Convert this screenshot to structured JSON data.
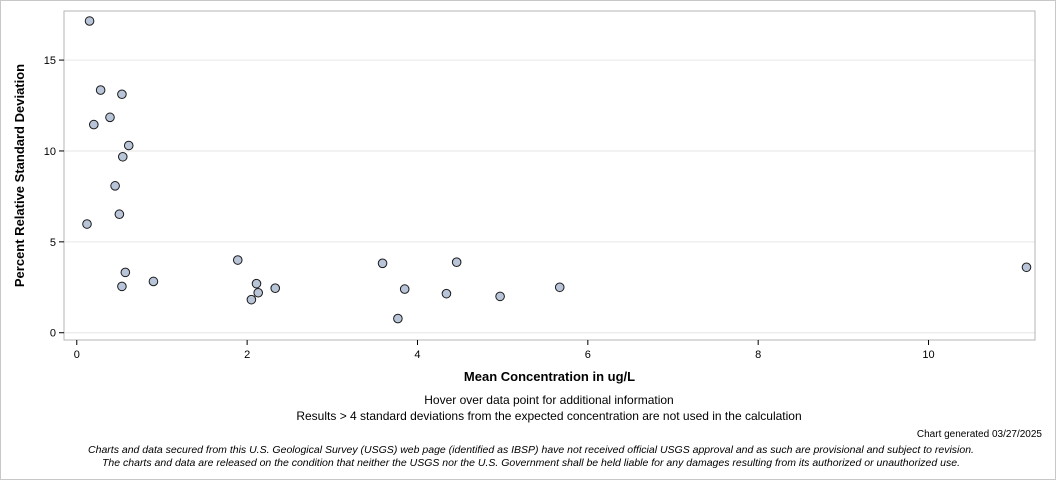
{
  "chart_data": {
    "type": "scatter",
    "xlabel": "Mean Concentration in ug/L",
    "ylabel": "Percent Relative Standard Deviation",
    "xlim": [
      -0.15,
      11.25
    ],
    "ylim": [
      -0.4,
      17.7
    ],
    "x_ticks": [
      {
        "value": 0,
        "label": "0"
      },
      {
        "value": 2,
        "label": "2"
      },
      {
        "value": 4,
        "label": "4"
      },
      {
        "value": 6,
        "label": "6"
      },
      {
        "value": 8,
        "label": "8"
      },
      {
        "value": 10,
        "label": "10"
      }
    ],
    "y_ticks": [
      {
        "value": 0,
        "label": "0"
      },
      {
        "value": 5,
        "label": "5"
      },
      {
        "value": 10,
        "label": "10"
      },
      {
        "value": 15,
        "label": "15"
      }
    ],
    "grid": "horizontal",
    "marker_fill": "#b8c4d8",
    "marker_stroke": "#1a1a1a",
    "points": [
      {
        "x": 0.15,
        "y": 17.15
      },
      {
        "x": 0.12,
        "y": 5.98
      },
      {
        "x": 0.2,
        "y": 11.45
      },
      {
        "x": 0.28,
        "y": 13.35
      },
      {
        "x": 0.39,
        "y": 11.85
      },
      {
        "x": 0.45,
        "y": 8.08
      },
      {
        "x": 0.5,
        "y": 6.52
      },
      {
        "x": 0.53,
        "y": 13.12
      },
      {
        "x": 0.54,
        "y": 9.68
      },
      {
        "x": 0.53,
        "y": 2.55
      },
      {
        "x": 0.57,
        "y": 3.32
      },
      {
        "x": 0.61,
        "y": 10.3
      },
      {
        "x": 0.9,
        "y": 2.82
      },
      {
        "x": 1.89,
        "y": 4.0
      },
      {
        "x": 2.05,
        "y": 1.82
      },
      {
        "x": 2.11,
        "y": 2.7
      },
      {
        "x": 2.13,
        "y": 2.2
      },
      {
        "x": 2.33,
        "y": 2.45
      },
      {
        "x": 3.59,
        "y": 3.82
      },
      {
        "x": 3.77,
        "y": 0.78
      },
      {
        "x": 3.85,
        "y": 2.4
      },
      {
        "x": 4.34,
        "y": 2.15
      },
      {
        "x": 4.46,
        "y": 3.88
      },
      {
        "x": 4.97,
        "y": 2.0
      },
      {
        "x": 5.67,
        "y": 2.5
      },
      {
        "x": 11.15,
        "y": 3.6
      }
    ]
  },
  "notes": {
    "hover": "Hover over data point for additional information",
    "results": "Results > 4 standard deviations from the expected concentration are not used in the calculation",
    "generated": "Chart generated 03/27/2025",
    "disclaimer_1": "Charts and data secured from this U.S. Geological Survey (USGS) web page (identified as IBSP) have not received official USGS approval and as such are provisional and subject to revision.",
    "disclaimer_2": "The charts and data are released on the condition that neither the USGS nor the U.S. Government shall be held liable for any damages resulting from its authorized or unauthorized use."
  },
  "colors": {
    "grid": "#e6e6e6",
    "frame": "#b4b4b4",
    "axis": "#000000"
  }
}
